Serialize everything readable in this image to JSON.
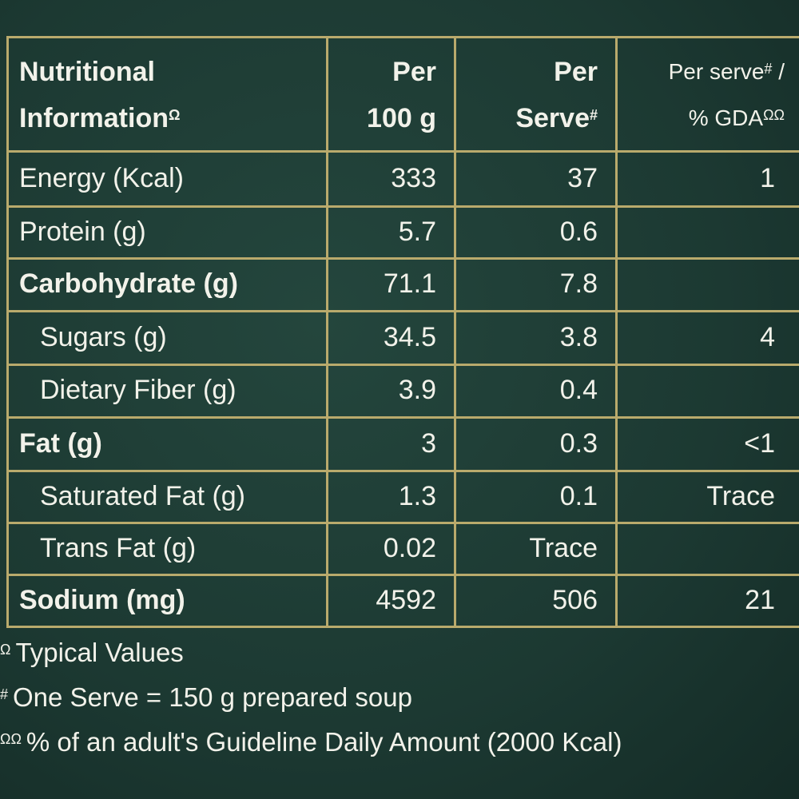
{
  "header": {
    "cells": [
      {
        "lines": [
          {
            "text": "Nutritional"
          },
          {
            "text": "Information",
            "sup": "Ω"
          }
        ]
      },
      {
        "lines": [
          {
            "text": "Per"
          },
          {
            "text": "100 g"
          }
        ]
      },
      {
        "lines": [
          {
            "text": "Per"
          },
          {
            "text": "Serve",
            "sup": "#"
          }
        ]
      },
      {
        "lines": [
          {
            "text": "Per serve",
            "sup": "#",
            "after": " /"
          },
          {
            "text": "% GDA",
            "sup": "ΩΩ"
          }
        ]
      }
    ]
  },
  "table": {
    "rows": [
      {
        "label": "Energy (Kcal)",
        "bold": false,
        "indent": false,
        "values": [
          "333",
          "37",
          "1"
        ]
      },
      {
        "label": "Protein (g)",
        "bold": false,
        "indent": false,
        "values": [
          "5.7",
          "0.6",
          null
        ]
      },
      {
        "label": "Carbohydrate (g)",
        "bold": true,
        "indent": false,
        "values": [
          "71.1",
          "7.8",
          null
        ]
      },
      {
        "label": "Sugars (g)",
        "bold": false,
        "indent": true,
        "values": [
          "34.5",
          "3.8",
          "4"
        ]
      },
      {
        "label": "Dietary Fiber (g)",
        "bold": false,
        "indent": true,
        "values": [
          "3.9",
          "0.4",
          null
        ]
      },
      {
        "label": "Fat (g)",
        "bold": true,
        "indent": false,
        "values": [
          "3",
          "0.3",
          "<1"
        ]
      },
      {
        "label": "Saturated Fat (g)",
        "bold": false,
        "indent": true,
        "values": [
          "1.3",
          "0.1",
          "Trace"
        ]
      },
      {
        "label": "Trans Fat (g)",
        "bold": false,
        "indent": true,
        "values": [
          "0.02",
          "Trace",
          null
        ]
      },
      {
        "label": "Sodium (mg)",
        "bold": true,
        "indent": false,
        "values": [
          "4592",
          "506",
          "21"
        ]
      }
    ]
  },
  "footnotes": [
    {
      "symbol": "Ω",
      "text": "Typical Values"
    },
    {
      "symbol": "#",
      "text": "One Serve = 150 g prepared soup"
    },
    {
      "symbol": "ΩΩ",
      "text": "% of an adult's Guideline Daily Amount (2000 Kcal)"
    }
  ]
}
